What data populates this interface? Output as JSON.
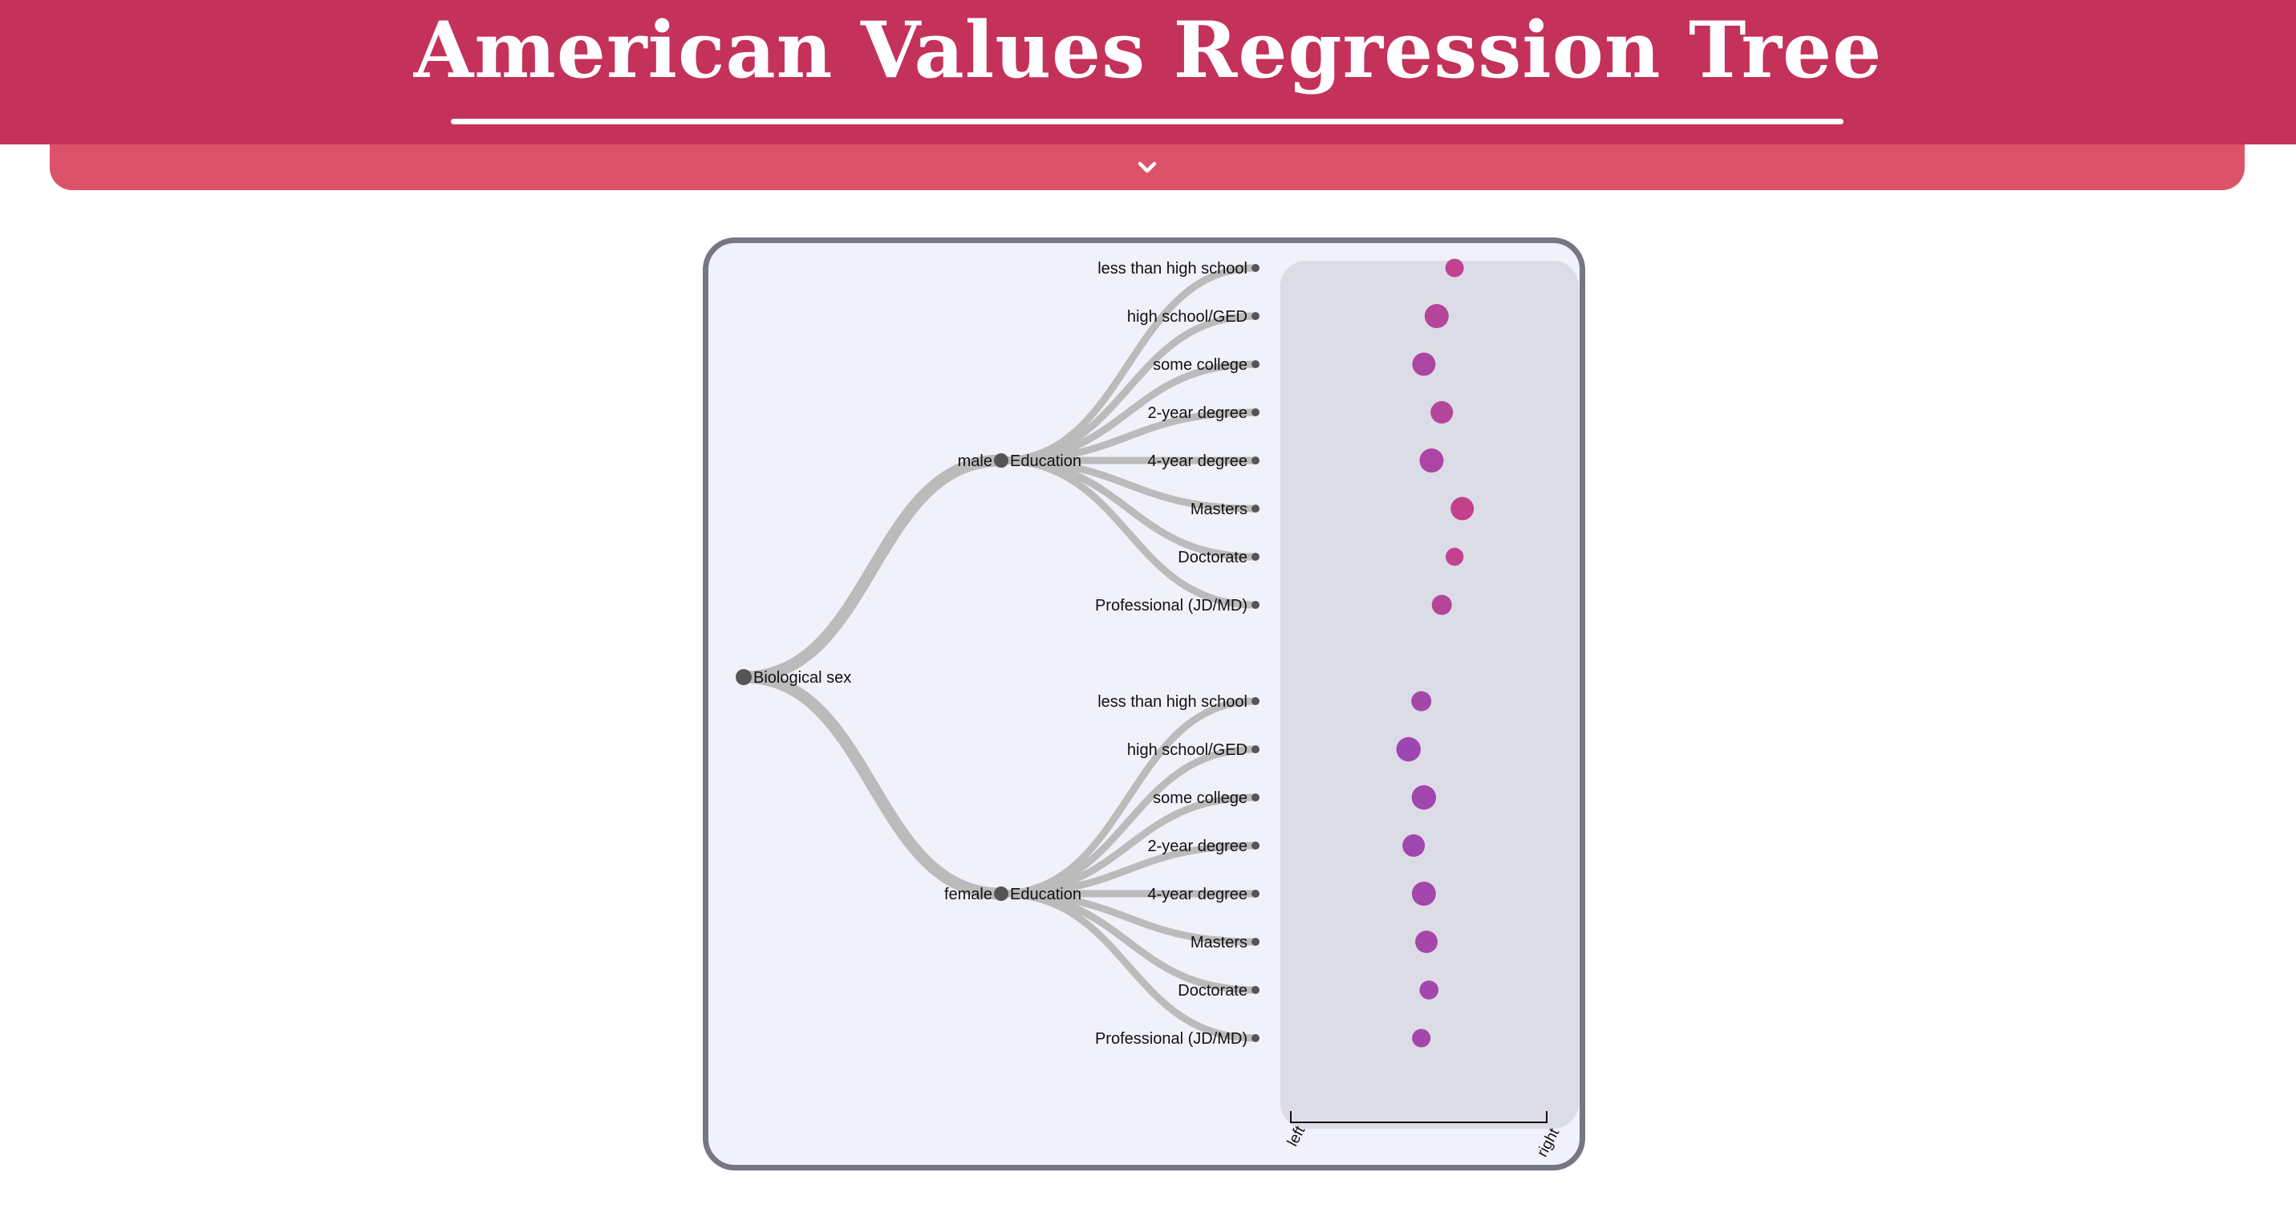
{
  "header": {
    "title": "American Values Regression Tree",
    "expand_icon": "chevron-down-icon"
  },
  "colors": {
    "header_bg": "#c4315a",
    "tab_bg": "#dc5268",
    "card_bg": "#f1f1fb",
    "card_border": "#777784",
    "panel_bg": "#dcdce6",
    "link": "#bbbbbb",
    "node": "#555555",
    "dot_pink": "#c2428f",
    "dot_purple": "#a046ae"
  },
  "tree": {
    "root": {
      "label": "Biological sex"
    },
    "branches": [
      {
        "value_label": "male",
        "split_label": "Education",
        "leaves": [
          "less than high school",
          "high school/GED",
          "some college",
          "2-year degree",
          "4-year degree",
          "Masters",
          "Doctorate",
          "Professional (JD/MD)"
        ],
        "dot_position": [
          0.64,
          0.57,
          0.52,
          0.59,
          0.55,
          0.67,
          0.64,
          0.59
        ],
        "dot_size": [
          0.45,
          0.8,
          0.75,
          0.7,
          0.8,
          0.75,
          0.42,
          0.55
        ],
        "dot_color": [
          "#c2428f",
          "#b44599",
          "#ad46a3",
          "#b3459b",
          "#ab46a5",
          "#c4408b",
          "#c2428f",
          "#b44599"
        ]
      },
      {
        "value_label": "female",
        "split_label": "Education",
        "leaves": [
          "less than high school",
          "high school/GED",
          "some college",
          "2-year degree",
          "4-year degree",
          "Masters",
          "Doctorate",
          "Professional (JD/MD)"
        ],
        "dot_position": [
          0.51,
          0.46,
          0.52,
          0.48,
          0.52,
          0.53,
          0.54,
          0.51
        ],
        "dot_size": [
          0.55,
          0.82,
          0.82,
          0.7,
          0.8,
          0.7,
          0.48,
          0.45
        ],
        "dot_color": [
          "#a546aa",
          "#9d46b1",
          "#a046ae",
          "#9f46b0",
          "#a446ab",
          "#a646a9",
          "#a446ab",
          "#a446ab"
        ]
      }
    ]
  },
  "axis": {
    "left_label": "left",
    "right_label": "right"
  }
}
